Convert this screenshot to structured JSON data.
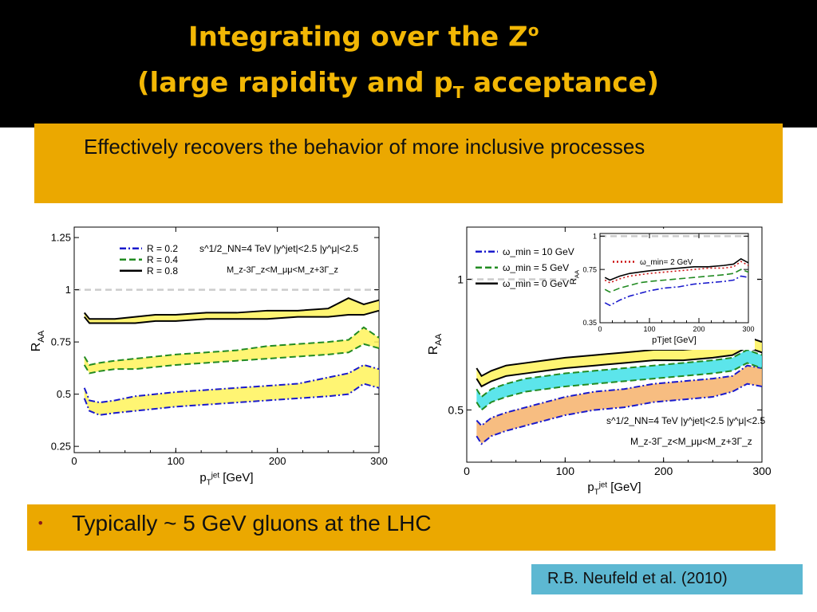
{
  "slide": {
    "title_line1": "Integrating over the Z",
    "title_sup": "o",
    "title_line2_pre": "(large rapidity and p",
    "title_line2_sub": "T",
    "title_line2_post": " acceptance)",
    "box_text": "Effectively recovers the behavior of more inclusive processes",
    "bullet": "•",
    "bullet_text": "Typically ~ 5 GeV gluons at the LHC",
    "citation": "R.B. Neufeld et al. (2010)"
  },
  "colors": {
    "title": "#f2b705",
    "gold_box": "#eba800",
    "citation_box": "#5db8d2",
    "band_yellow": "#fff35a",
    "band_cyan": "#40e0e8",
    "band_orange": "#f6b26b"
  },
  "chart_data": [
    {
      "type": "line",
      "xlabel": "p_T^jet [GeV]",
      "ylabel": "R_AA",
      "xlim": [
        0,
        300
      ],
      "ylim": [
        0.22,
        1.3
      ],
      "xticks": [
        "0",
        "100",
        "200",
        "300"
      ],
      "yticks": [
        "0.25",
        "0.5",
        "0.75",
        "1",
        "1.25"
      ],
      "reference_line": 1,
      "annotation_top": "s^1/2_NN=4 TeV  |y^jet|<2.5  |y^μ|<2.5",
      "annotation_mass": "M_z-3Γ_z<M_μμ<M_z+3Γ_z",
      "legend_position": "top-left",
      "series": [
        {
          "name": "R = 0.2",
          "style": "dashdot",
          "color": "#1a1acc",
          "x": [
            10,
            15,
            25,
            40,
            60,
            80,
            100,
            130,
            160,
            190,
            220,
            250,
            270,
            285,
            300
          ],
          "upper": [
            0.53,
            0.47,
            0.46,
            0.47,
            0.49,
            0.5,
            0.51,
            0.52,
            0.53,
            0.54,
            0.55,
            0.58,
            0.6,
            0.64,
            0.62
          ],
          "lower": [
            0.48,
            0.42,
            0.4,
            0.41,
            0.42,
            0.43,
            0.44,
            0.45,
            0.46,
            0.47,
            0.48,
            0.49,
            0.5,
            0.55,
            0.53
          ]
        },
        {
          "name": "R = 0.4",
          "style": "dashed",
          "color": "#228b22",
          "x": [
            10,
            15,
            25,
            40,
            60,
            80,
            100,
            130,
            160,
            190,
            220,
            250,
            270,
            285,
            300
          ],
          "upper": [
            0.68,
            0.64,
            0.65,
            0.66,
            0.67,
            0.68,
            0.69,
            0.7,
            0.71,
            0.73,
            0.74,
            0.75,
            0.76,
            0.82,
            0.77
          ],
          "lower": [
            0.64,
            0.6,
            0.61,
            0.62,
            0.62,
            0.63,
            0.64,
            0.65,
            0.66,
            0.67,
            0.68,
            0.69,
            0.7,
            0.74,
            0.72
          ]
        },
        {
          "name": "R = 0.8",
          "style": "solid",
          "color": "#000000",
          "x": [
            10,
            15,
            25,
            40,
            60,
            80,
            100,
            130,
            160,
            190,
            220,
            250,
            270,
            285,
            300
          ],
          "upper": [
            0.89,
            0.86,
            0.86,
            0.86,
            0.87,
            0.88,
            0.88,
            0.89,
            0.89,
            0.9,
            0.9,
            0.91,
            0.96,
            0.93,
            0.95
          ],
          "lower": [
            0.87,
            0.84,
            0.84,
            0.84,
            0.84,
            0.85,
            0.85,
            0.86,
            0.86,
            0.86,
            0.87,
            0.87,
            0.88,
            0.88,
            0.9
          ]
        }
      ]
    },
    {
      "type": "line",
      "xlabel": "p_T^jet [GeV]",
      "ylabel": "R_AA",
      "xlim": [
        0,
        300
      ],
      "ylim": [
        0.3,
        1.2
      ],
      "xticks": [
        "0",
        "100",
        "200",
        "300"
      ],
      "yticks": [
        "0.5",
        "1"
      ],
      "reference_line": 1,
      "annotation_top": "s^1/2_NN=4 TeV  |y^jet|<2.5  |y^μ|<2.5",
      "annotation_mass": "M_z-3Γ_z<M_μμ<M_z+3Γ_z",
      "legend_position": "top-left",
      "series": [
        {
          "name": "ω_min = 10 GeV",
          "style": "dashdot",
          "color": "#1a1acc",
          "x": [
            10,
            15,
            25,
            40,
            60,
            80,
            100,
            130,
            160,
            190,
            220,
            250,
            270,
            285,
            300
          ],
          "upper": [
            0.46,
            0.44,
            0.47,
            0.49,
            0.51,
            0.53,
            0.55,
            0.57,
            0.58,
            0.6,
            0.61,
            0.62,
            0.63,
            0.67,
            0.66
          ],
          "lower": [
            0.4,
            0.37,
            0.4,
            0.42,
            0.44,
            0.46,
            0.48,
            0.5,
            0.51,
            0.53,
            0.54,
            0.55,
            0.57,
            0.6,
            0.59
          ]
        },
        {
          "name": "ω_min = 5 GeV",
          "style": "dashed",
          "color": "#228b22",
          "x": [
            10,
            15,
            25,
            40,
            60,
            80,
            100,
            130,
            160,
            190,
            220,
            250,
            270,
            285,
            300
          ],
          "upper": [
            0.58,
            0.55,
            0.58,
            0.6,
            0.62,
            0.63,
            0.64,
            0.65,
            0.66,
            0.67,
            0.68,
            0.69,
            0.7,
            0.73,
            0.71
          ],
          "lower": [
            0.53,
            0.5,
            0.53,
            0.55,
            0.57,
            0.58,
            0.59,
            0.6,
            0.61,
            0.62,
            0.63,
            0.64,
            0.65,
            0.68,
            0.66
          ]
        },
        {
          "name": "ω_min = 0 GeV",
          "style": "solid",
          "color": "#000000",
          "x": [
            10,
            15,
            25,
            40,
            60,
            80,
            100,
            130,
            160,
            190,
            220,
            250,
            270,
            285,
            300
          ],
          "upper": [
            0.66,
            0.63,
            0.65,
            0.67,
            0.68,
            0.69,
            0.7,
            0.71,
            0.72,
            0.73,
            0.73,
            0.74,
            0.75,
            0.78,
            0.76
          ],
          "lower": [
            0.62,
            0.59,
            0.61,
            0.63,
            0.64,
            0.65,
            0.66,
            0.67,
            0.68,
            0.69,
            0.69,
            0.7,
            0.71,
            0.74,
            0.72
          ]
        }
      ],
      "inset": {
        "xlabel": "p_T^jet [GeV]",
        "ylabel": "R_AA",
        "xlim": [
          0,
          300
        ],
        "ylim": [
          0.35,
          1.02
        ],
        "xticks": [
          "0",
          "100",
          "200",
          "300"
        ],
        "yticks": [
          "0.35",
          "0.75",
          "1"
        ],
        "reference_line": 1,
        "legend_position": "top-left",
        "series": [
          {
            "name": "ω_min= 2 GeV",
            "style": "dotted",
            "color": "#cc1111",
            "x": [
              10,
              20,
              40,
              60,
              80,
              100,
              130,
              160,
              190,
              220,
              250,
              270,
              285,
              300
            ],
            "values": [
              0.67,
              0.65,
              0.68,
              0.7,
              0.71,
              0.72,
              0.73,
              0.74,
              0.75,
              0.76,
              0.76,
              0.77,
              0.81,
              0.78
            ]
          },
          {
            "name": "",
            "style": "solid",
            "color": "#000000",
            "x": [
              10,
              20,
              40,
              60,
              80,
              100,
              130,
              160,
              190,
              220,
              250,
              270,
              285,
              300
            ],
            "values": [
              0.69,
              0.67,
              0.7,
              0.72,
              0.73,
              0.74,
              0.75,
              0.76,
              0.77,
              0.77,
              0.78,
              0.79,
              0.83,
              0.8
            ]
          },
          {
            "name": "",
            "style": "dashed",
            "color": "#228b22",
            "x": [
              10,
              20,
              40,
              60,
              80,
              100,
              130,
              160,
              190,
              220,
              250,
              270,
              285,
              300
            ],
            "values": [
              0.6,
              0.58,
              0.61,
              0.63,
              0.65,
              0.66,
              0.67,
              0.68,
              0.69,
              0.7,
              0.71,
              0.72,
              0.75,
              0.73
            ]
          },
          {
            "name": "",
            "style": "dashdot",
            "color": "#1a1acc",
            "x": [
              10,
              20,
              40,
              60,
              80,
              100,
              130,
              160,
              190,
              220,
              250,
              270,
              285,
              300
            ],
            "values": [
              0.5,
              0.48,
              0.52,
              0.55,
              0.57,
              0.59,
              0.61,
              0.62,
              0.64,
              0.65,
              0.66,
              0.67,
              0.7,
              0.69
            ]
          }
        ]
      }
    }
  ]
}
